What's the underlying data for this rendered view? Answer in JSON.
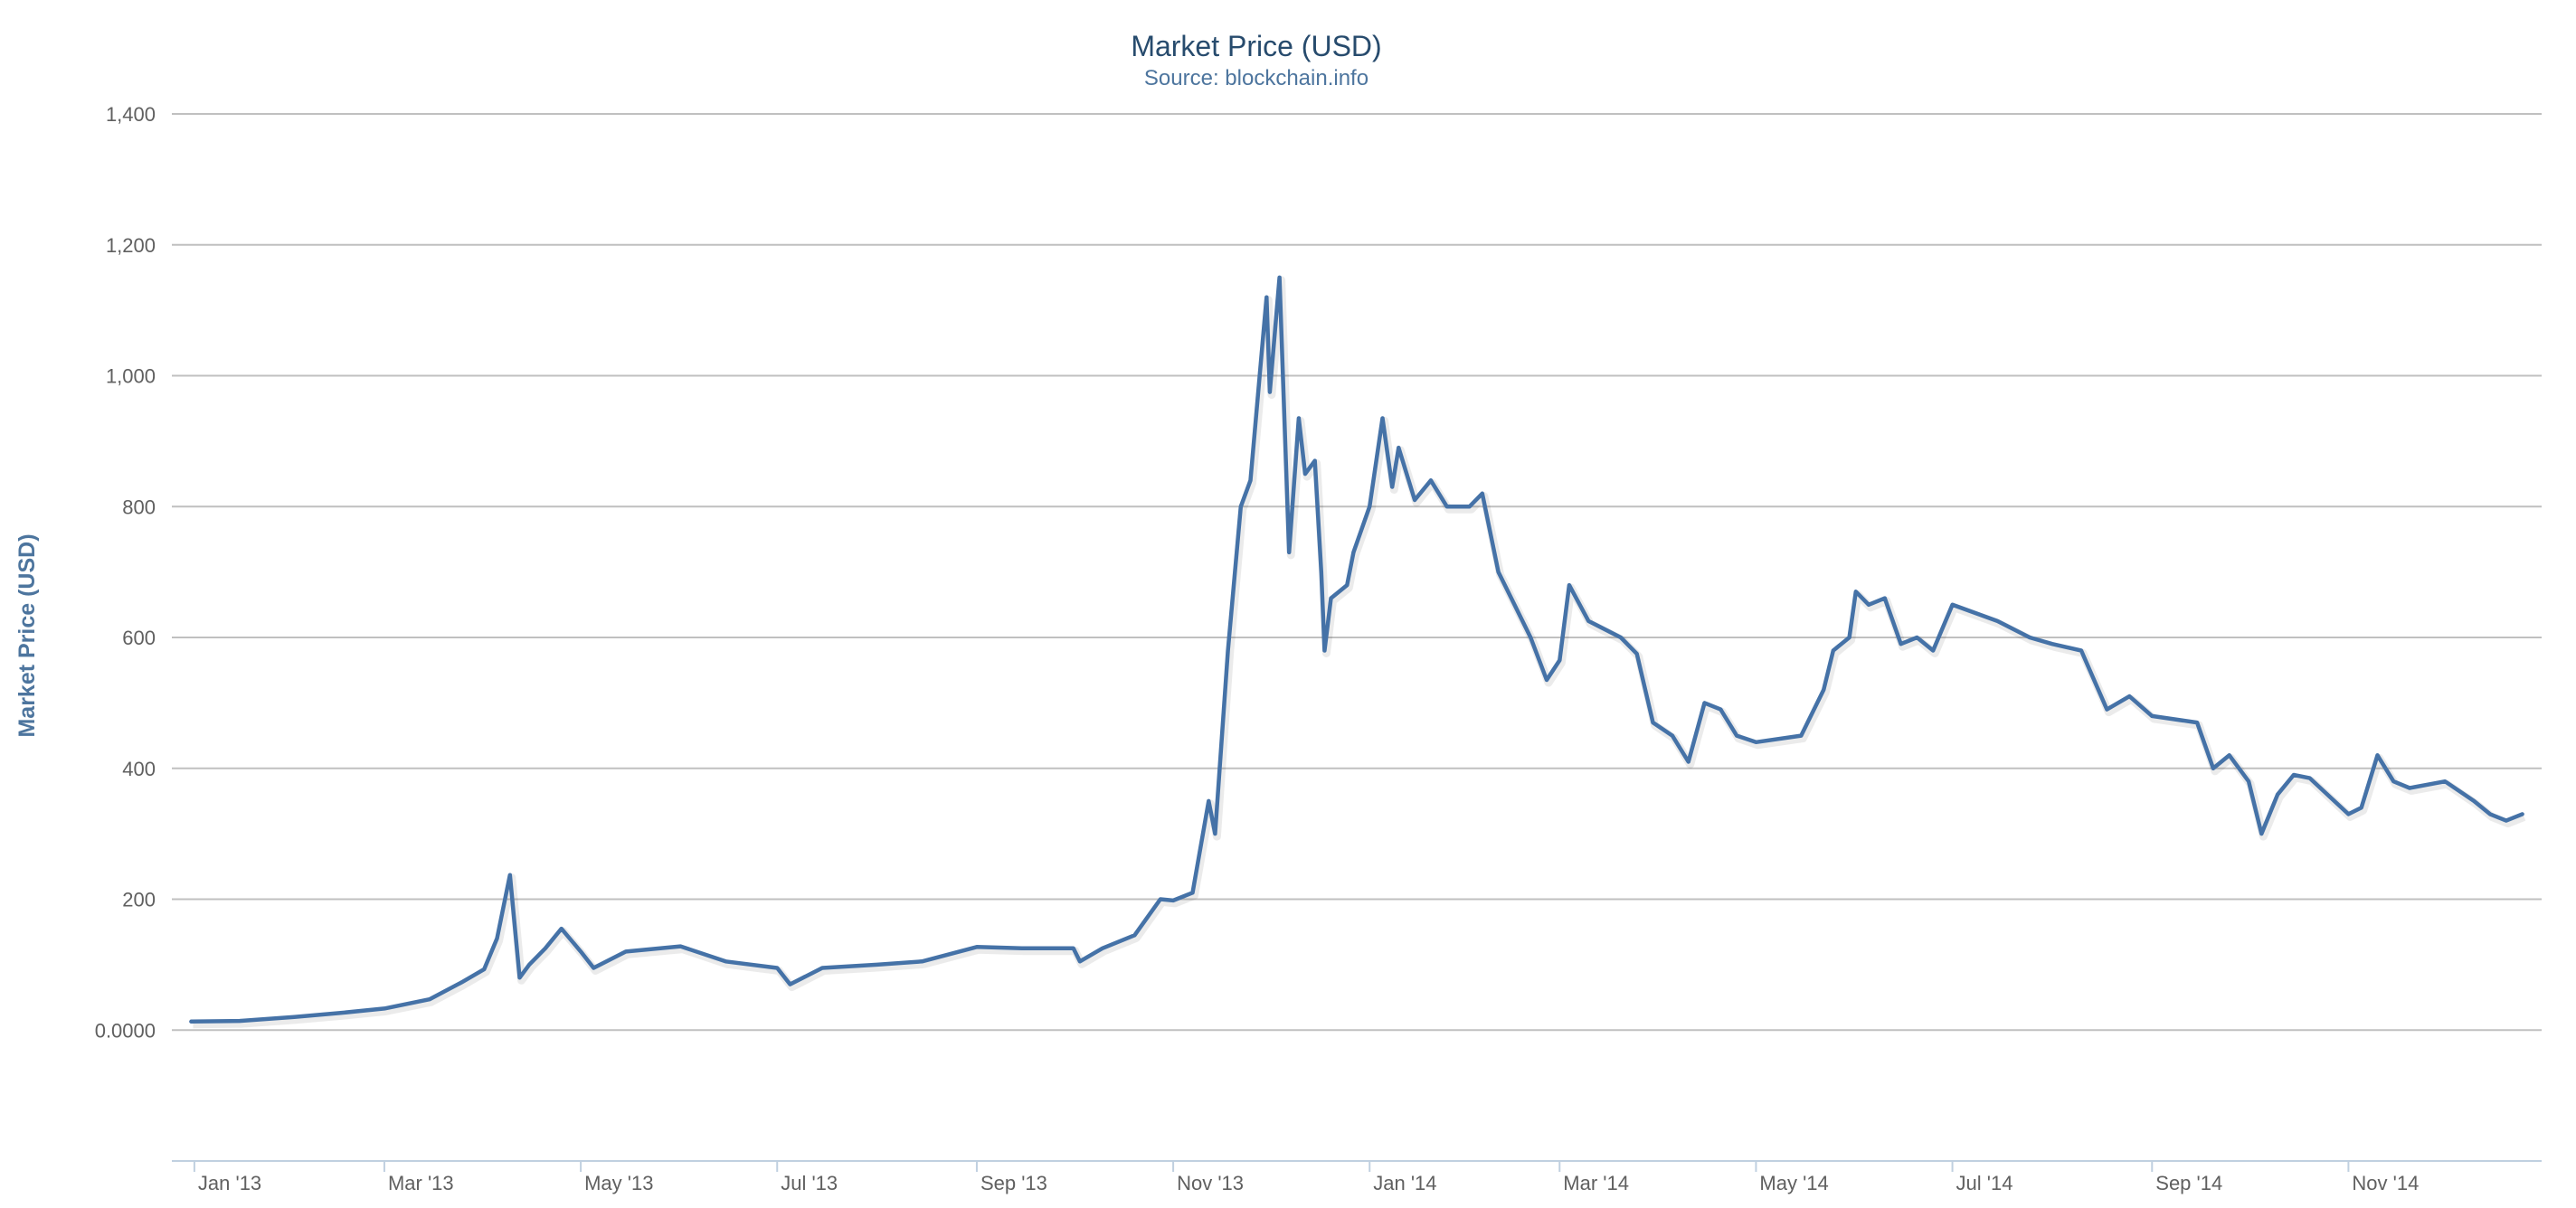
{
  "chart_data": {
    "type": "line",
    "title": "Market Price (USD)",
    "subtitle": "Source: blockchain.info",
    "xlabel": "",
    "ylabel": "Market Price (USD)",
    "x_range": [
      "2012-12-25",
      "2014-12-31"
    ],
    "ylim": [
      -200,
      1400
    ],
    "y_ticks": [
      {
        "value": 0,
        "label": "0.0000"
      },
      {
        "value": 200,
        "label": "200"
      },
      {
        "value": 400,
        "label": "400"
      },
      {
        "value": 600,
        "label": "600"
      },
      {
        "value": 800,
        "label": "800"
      },
      {
        "value": 1000,
        "label": "1,000"
      },
      {
        "value": 1200,
        "label": "1,200"
      },
      {
        "value": 1400,
        "label": "1,400"
      }
    ],
    "x_ticks": [
      {
        "date": "2013-01-01",
        "label": "Jan '13"
      },
      {
        "date": "2013-03-01",
        "label": "Mar '13"
      },
      {
        "date": "2013-05-01",
        "label": "May '13"
      },
      {
        "date": "2013-07-01",
        "label": "Jul '13"
      },
      {
        "date": "2013-09-01",
        "label": "Sep '13"
      },
      {
        "date": "2013-11-01",
        "label": "Nov '13"
      },
      {
        "date": "2014-01-01",
        "label": "Jan '14"
      },
      {
        "date": "2014-03-01",
        "label": "Mar '14"
      },
      {
        "date": "2014-05-01",
        "label": "May '14"
      },
      {
        "date": "2014-07-01",
        "label": "Jul '14"
      },
      {
        "date": "2014-09-01",
        "label": "Sep '14"
      },
      {
        "date": "2014-11-01",
        "label": "Nov '14"
      }
    ],
    "grid": true,
    "legend": "none",
    "series": [
      {
        "color": "#4572a7",
        "points": [
          [
            "2012-12-31",
            13
          ],
          [
            "2013-01-15",
            14
          ],
          [
            "2013-02-01",
            20
          ],
          [
            "2013-02-15",
            26
          ],
          [
            "2013-03-01",
            33
          ],
          [
            "2013-03-15",
            47
          ],
          [
            "2013-03-25",
            73
          ],
          [
            "2013-04-01",
            93
          ],
          [
            "2013-04-05",
            140
          ],
          [
            "2013-04-09",
            237
          ],
          [
            "2013-04-12",
            80
          ],
          [
            "2013-04-15",
            100
          ],
          [
            "2013-04-20",
            125
          ],
          [
            "2013-04-25",
            155
          ],
          [
            "2013-05-01",
            120
          ],
          [
            "2013-05-05",
            95
          ],
          [
            "2013-05-15",
            120
          ],
          [
            "2013-06-01",
            128
          ],
          [
            "2013-06-15",
            105
          ],
          [
            "2013-07-01",
            95
          ],
          [
            "2013-07-05",
            70
          ],
          [
            "2013-07-15",
            95
          ],
          [
            "2013-08-01",
            100
          ],
          [
            "2013-08-15",
            105
          ],
          [
            "2013-09-01",
            127
          ],
          [
            "2013-09-15",
            125
          ],
          [
            "2013-10-01",
            125
          ],
          [
            "2013-10-03",
            105
          ],
          [
            "2013-10-10",
            125
          ],
          [
            "2013-10-20",
            145
          ],
          [
            "2013-10-28",
            200
          ],
          [
            "2013-11-01",
            198
          ],
          [
            "2013-11-07",
            210
          ],
          [
            "2013-11-12",
            350
          ],
          [
            "2013-11-14",
            300
          ],
          [
            "2013-11-18",
            580
          ],
          [
            "2013-11-22",
            800
          ],
          [
            "2013-11-25",
            840
          ],
          [
            "2013-11-30",
            1120
          ],
          [
            "2013-12-01",
            975
          ],
          [
            "2013-12-04",
            1150
          ],
          [
            "2013-12-07",
            730
          ],
          [
            "2013-12-10",
            935
          ],
          [
            "2013-12-12",
            850
          ],
          [
            "2013-12-15",
            870
          ],
          [
            "2013-12-17",
            700
          ],
          [
            "2013-12-18",
            580
          ],
          [
            "2013-12-20",
            660
          ],
          [
            "2013-12-25",
            680
          ],
          [
            "2013-12-27",
            730
          ],
          [
            "2014-01-01",
            800
          ],
          [
            "2014-01-05",
            935
          ],
          [
            "2014-01-08",
            830
          ],
          [
            "2014-01-10",
            890
          ],
          [
            "2014-01-15",
            810
          ],
          [
            "2014-01-20",
            840
          ],
          [
            "2014-01-25",
            800
          ],
          [
            "2014-02-01",
            800
          ],
          [
            "2014-02-05",
            820
          ],
          [
            "2014-02-10",
            700
          ],
          [
            "2014-02-15",
            650
          ],
          [
            "2014-02-20",
            600
          ],
          [
            "2014-02-25",
            535
          ],
          [
            "2014-03-01",
            565
          ],
          [
            "2014-03-04",
            680
          ],
          [
            "2014-03-10",
            625
          ],
          [
            "2014-03-20",
            600
          ],
          [
            "2014-03-25",
            575
          ],
          [
            "2014-03-30",
            470
          ],
          [
            "2014-04-05",
            450
          ],
          [
            "2014-04-10",
            410
          ],
          [
            "2014-04-15",
            500
          ],
          [
            "2014-04-20",
            490
          ],
          [
            "2014-04-25",
            450
          ],
          [
            "2014-05-01",
            440
          ],
          [
            "2014-05-15",
            450
          ],
          [
            "2014-05-22",
            520
          ],
          [
            "2014-05-25",
            580
          ],
          [
            "2014-05-30",
            600
          ],
          [
            "2014-06-01",
            670
          ],
          [
            "2014-06-05",
            650
          ],
          [
            "2014-06-10",
            660
          ],
          [
            "2014-06-15",
            590
          ],
          [
            "2014-06-20",
            600
          ],
          [
            "2014-06-25",
            580
          ],
          [
            "2014-07-01",
            650
          ],
          [
            "2014-07-15",
            625
          ],
          [
            "2014-07-25",
            600
          ],
          [
            "2014-08-01",
            590
          ],
          [
            "2014-08-10",
            580
          ],
          [
            "2014-08-18",
            490
          ],
          [
            "2014-08-25",
            510
          ],
          [
            "2014-09-01",
            480
          ],
          [
            "2014-09-15",
            470
          ],
          [
            "2014-09-20",
            400
          ],
          [
            "2014-09-25",
            420
          ],
          [
            "2014-10-01",
            380
          ],
          [
            "2014-10-05",
            300
          ],
          [
            "2014-10-10",
            360
          ],
          [
            "2014-10-15",
            390
          ],
          [
            "2014-10-20",
            385
          ],
          [
            "2014-11-01",
            330
          ],
          [
            "2014-11-05",
            340
          ],
          [
            "2014-11-10",
            420
          ],
          [
            "2014-11-15",
            380
          ],
          [
            "2014-11-20",
            370
          ],
          [
            "2014-12-01",
            380
          ],
          [
            "2014-12-10",
            350
          ],
          [
            "2014-12-15",
            330
          ],
          [
            "2014-12-20",
            320
          ],
          [
            "2014-12-25",
            330
          ]
        ]
      }
    ]
  }
}
